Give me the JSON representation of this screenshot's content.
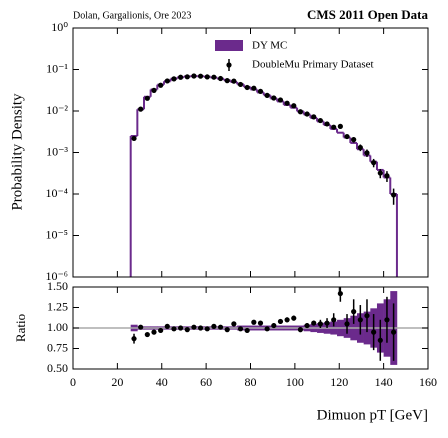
{
  "chart_data": [
    {
      "type": "histogram",
      "annotations": [
        "Dolan, Gargalionis, Ore 2023",
        "CMS 2011 Open Data"
      ],
      "ylabel": "Probability Density",
      "log_scale": true,
      "xlim": [
        0,
        160
      ],
      "ylim": [
        1e-06,
        1
      ],
      "yticks": [
        {
          "value": 1e-06,
          "label": "10⁻⁶"
        },
        {
          "value": 1e-05,
          "label": "10⁻⁵"
        },
        {
          "value": 0.0001,
          "label": "10⁻⁴"
        },
        {
          "value": 0.001,
          "label": "10⁻³"
        },
        {
          "value": 0.01,
          "label": "10⁻²"
        },
        {
          "value": 0.1,
          "label": "10⁻¹"
        },
        {
          "value": 1,
          "label": "10⁰"
        }
      ],
      "legend": "upper center",
      "bins": [
        26,
        29,
        32,
        35,
        38,
        41,
        44,
        47,
        50,
        53,
        56,
        59,
        62,
        65,
        68,
        71,
        74,
        77,
        80,
        83,
        86,
        89,
        92,
        95,
        98,
        101,
        104,
        107,
        110,
        113,
        116,
        119,
        122,
        125,
        128,
        131,
        134,
        137,
        140,
        143,
        146
      ],
      "series": [
        {
          "name": "DY MC",
          "color": "#6b2a8c",
          "values": [
            0.0025,
            0.011,
            0.022,
            0.033,
            0.043,
            0.052,
            0.06,
            0.065,
            0.068,
            0.069,
            0.069,
            0.067,
            0.064,
            0.06,
            0.055,
            0.05,
            0.044,
            0.038,
            0.033,
            0.028,
            0.024,
            0.02,
            0.017,
            0.014,
            0.012,
            0.0098,
            0.0082,
            0.0068,
            0.0056,
            0.0046,
            0.0037,
            0.003,
            0.0023,
            0.0017,
            0.0012,
            0.00085,
            0.0006,
            0.00038,
            0.00025,
            0.0001
          ]
        },
        {
          "name": "DoubleMu Primary Dataset",
          "color": "#000000",
          "values": [
            0.00218,
            0.0111,
            0.0202,
            0.0314,
            0.0417,
            0.053,
            0.0594,
            0.065,
            0.0666,
            0.0697,
            0.069,
            0.0663,
            0.0653,
            0.0606,
            0.0539,
            0.0525,
            0.0436,
            0.0369,
            0.0353,
            0.0297,
            0.0238,
            0.0206,
            0.0184,
            0.0154,
            0.0134,
            0.0096,
            0.00845,
            0.00721,
            0.00588,
            0.00488,
            0.00407,
            0.00426,
            0.00242,
            0.00204,
            0.00132,
            0.00098,
            0.00057,
            0.00032,
            0.000275,
            9.5e-05
          ],
          "errors": [
            0.00013,
            0.0002,
            0.0004,
            0.0006,
            0.0008,
            0.0011,
            0.0012,
            0.0013,
            0.0013,
            0.0014,
            0.0014,
            0.0013,
            0.0013,
            0.0012,
            0.0011,
            0.0011,
            0.0009,
            0.0007,
            0.0007,
            0.0006,
            0.0005,
            0.0006,
            0.00055,
            0.00046,
            0.0004,
            0.00029,
            0.00025,
            0.00022,
            0.00029,
            0.00029,
            0.00033,
            0.00043,
            0.00029,
            0.00031,
            0.00024,
            0.0002,
            0.00013,
            8e-05,
            8e-05,
            4e-05
          ]
        }
      ]
    },
    {
      "type": "ratio",
      "ylabel": "Ratio",
      "xlabel": "Dimuon pT [GeV]",
      "xlim": [
        0,
        160
      ],
      "xticks": [
        0,
        20,
        40,
        60,
        80,
        100,
        120,
        140,
        160
      ],
      "ylim": [
        0.5,
        1.5
      ],
      "yticks": [
        {
          "value": 0.5,
          "label": "0.50"
        },
        {
          "value": 0.75,
          "label": "0.75"
        },
        {
          "value": 1.0,
          "label": "1.00"
        },
        {
          "value": 1.25,
          "label": "1.25"
        },
        {
          "value": 1.5,
          "label": "1.50"
        }
      ],
      "reference_line": 1,
      "band": {
        "color": "#6b2a8c",
        "values": [
          0.04,
          0.02,
          0.02,
          0.02,
          0.02,
          0.02,
          0.02,
          0.02,
          0.02,
          0.02,
          0.02,
          0.02,
          0.02,
          0.02,
          0.02,
          0.02,
          0.03,
          0.03,
          0.03,
          0.03,
          0.03,
          0.03,
          0.03,
          0.03,
          0.03,
          0.03,
          0.04,
          0.05,
          0.06,
          0.07,
          0.08,
          0.1,
          0.12,
          0.15,
          0.18,
          0.2,
          0.24,
          0.3,
          0.35,
          0.45
        ]
      },
      "color": "#000000",
      "values": [
        0.87,
        1.01,
        0.92,
        0.95,
        0.97,
        1.02,
        0.99,
        1.0,
        0.98,
        1.01,
        1.0,
        0.99,
        1.02,
        1.01,
        0.98,
        1.05,
        0.99,
        0.97,
        1.07,
        1.06,
        0.99,
        1.03,
        1.08,
        1.1,
        1.12,
        0.98,
        1.03,
        1.06,
        1.05,
        1.06,
        1.1,
        1.42,
        1.05,
        1.2,
        1.1,
        1.15,
        0.95,
        0.85,
        1.1,
        0.95
      ],
      "errors": [
        0.06,
        0.02,
        0.02,
        0.02,
        0.02,
        0.02,
        0.02,
        0.02,
        0.02,
        0.02,
        0.02,
        0.02,
        0.02,
        0.02,
        0.02,
        0.02,
        0.02,
        0.02,
        0.02,
        0.02,
        0.02,
        0.03,
        0.03,
        0.03,
        0.03,
        0.03,
        0.03,
        0.03,
        0.05,
        0.06,
        0.08,
        0.1,
        0.12,
        0.15,
        0.18,
        0.2,
        0.22,
        0.25,
        0.28,
        0.35
      ]
    }
  ]
}
